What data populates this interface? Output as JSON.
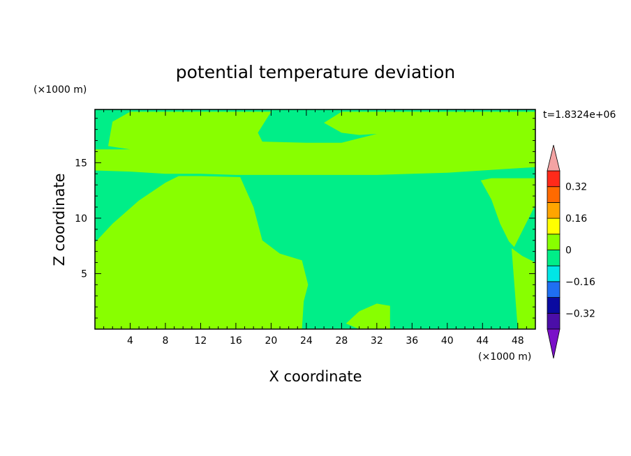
{
  "chart_data": {
    "type": "heatmap",
    "subtype": "filled-contour",
    "title": "potential temperature deviation",
    "xlabel": "X coordinate",
    "ylabel": "Z coordinate",
    "x_unit_label": "(×1000 m)",
    "y_unit_label": "(×1000 m)",
    "time_label": "t=1.8324e+06",
    "xlim": [
      0,
      50
    ],
    "ylim": [
      0,
      19.8
    ],
    "x_ticks": [
      4,
      8,
      12,
      16,
      20,
      24,
      28,
      32,
      36,
      40,
      44,
      48
    ],
    "y_ticks": [
      5,
      10,
      15
    ],
    "grid": false,
    "legend_position": "right",
    "colorbar": {
      "levels": [
        -0.4,
        -0.32,
        -0.24,
        -0.16,
        -0.08,
        0,
        0.08,
        0.16,
        0.24,
        0.32,
        0.4
      ],
      "labeled_levels": [
        0.32,
        0.16,
        0,
        -0.16,
        -0.32
      ],
      "labels": [
        "0.32",
        "0.16",
        "0",
        "−0.16",
        "−0.32"
      ],
      "band_colors": [
        "#4b0ea8",
        "#0a0aa0",
        "#1f6ff2",
        "#00e6e6",
        "#00ee88",
        "#88ff00",
        "#ffff00",
        "#ffa500",
        "#ff6a00",
        "#ff2a1a"
      ],
      "under_color": "#7a10c8",
      "over_color": "#f4a3a3"
    },
    "regions": [
      {
        "band": "0 to 0.08",
        "color": "#88ff00",
        "outline_x": [
          0,
          2,
          5,
          8,
          9.5,
          12,
          16.5,
          18,
          19,
          21,
          23.5,
          24.2,
          23.7,
          23.5,
          18,
          12,
          8,
          4,
          0
        ],
        "outline_z": [
          7.8,
          9.5,
          11.6,
          13.2,
          13.8,
          13.8,
          13.7,
          11,
          8,
          6.8,
          6.2,
          4,
          2.5,
          0,
          0,
          0,
          0,
          0,
          0
        ]
      },
      {
        "band": "0 to 0.08",
        "color": "#88ff00",
        "outline_x": [
          0,
          4,
          8,
          12,
          16,
          20,
          24,
          28,
          32,
          36,
          40,
          44,
          48,
          50,
          50,
          48,
          44,
          40,
          36,
          32,
          28,
          26,
          28,
          30,
          32,
          28,
          24,
          19,
          18.5,
          20,
          16,
          12,
          8,
          4,
          2,
          1.5,
          4,
          0
        ],
        "outline_z": [
          14.3,
          14.2,
          14,
          14,
          13.9,
          13.9,
          13.9,
          13.9,
          13.9,
          14.0,
          14.1,
          14.3,
          14.5,
          14.6,
          19.6,
          19.6,
          19.6,
          19.6,
          19.6,
          19.6,
          19.6,
          18.6,
          17.7,
          17.5,
          17.6,
          16.8,
          16.8,
          16.9,
          17.7,
          19.6,
          19.6,
          19.6,
          19.6,
          19.6,
          18.7,
          16.5,
          16.2,
          16.2
        ]
      },
      {
        "band": "0 to 0.08",
        "color": "#88ff00",
        "outline_x": [
          43.8,
          45,
          46,
          47,
          47.6,
          50,
          50,
          47.5,
          45,
          43.8
        ],
        "outline_z": [
          13.4,
          11.7,
          9.5,
          7.9,
          7.4,
          11.2,
          13.6,
          13.6,
          13.6,
          13.4
        ]
      },
      {
        "band": "0 to 0.08",
        "color": "#88ff00",
        "outline_x": [
          47.3,
          48.5,
          50,
          50,
          48,
          47.3
        ],
        "outline_z": [
          7.3,
          6.6,
          6.0,
          0,
          0,
          7.3
        ]
      },
      {
        "band": "0 to 0.08",
        "color": "#88ff00",
        "outline_x": [
          28.5,
          30,
          32,
          33.5,
          33.5,
          30,
          28.5
        ],
        "outline_z": [
          0.5,
          1.6,
          2.3,
          2.1,
          0,
          0,
          0.5
        ]
      }
    ],
    "background_band": "-0.08 to 0",
    "background_color": "#00ee88"
  }
}
